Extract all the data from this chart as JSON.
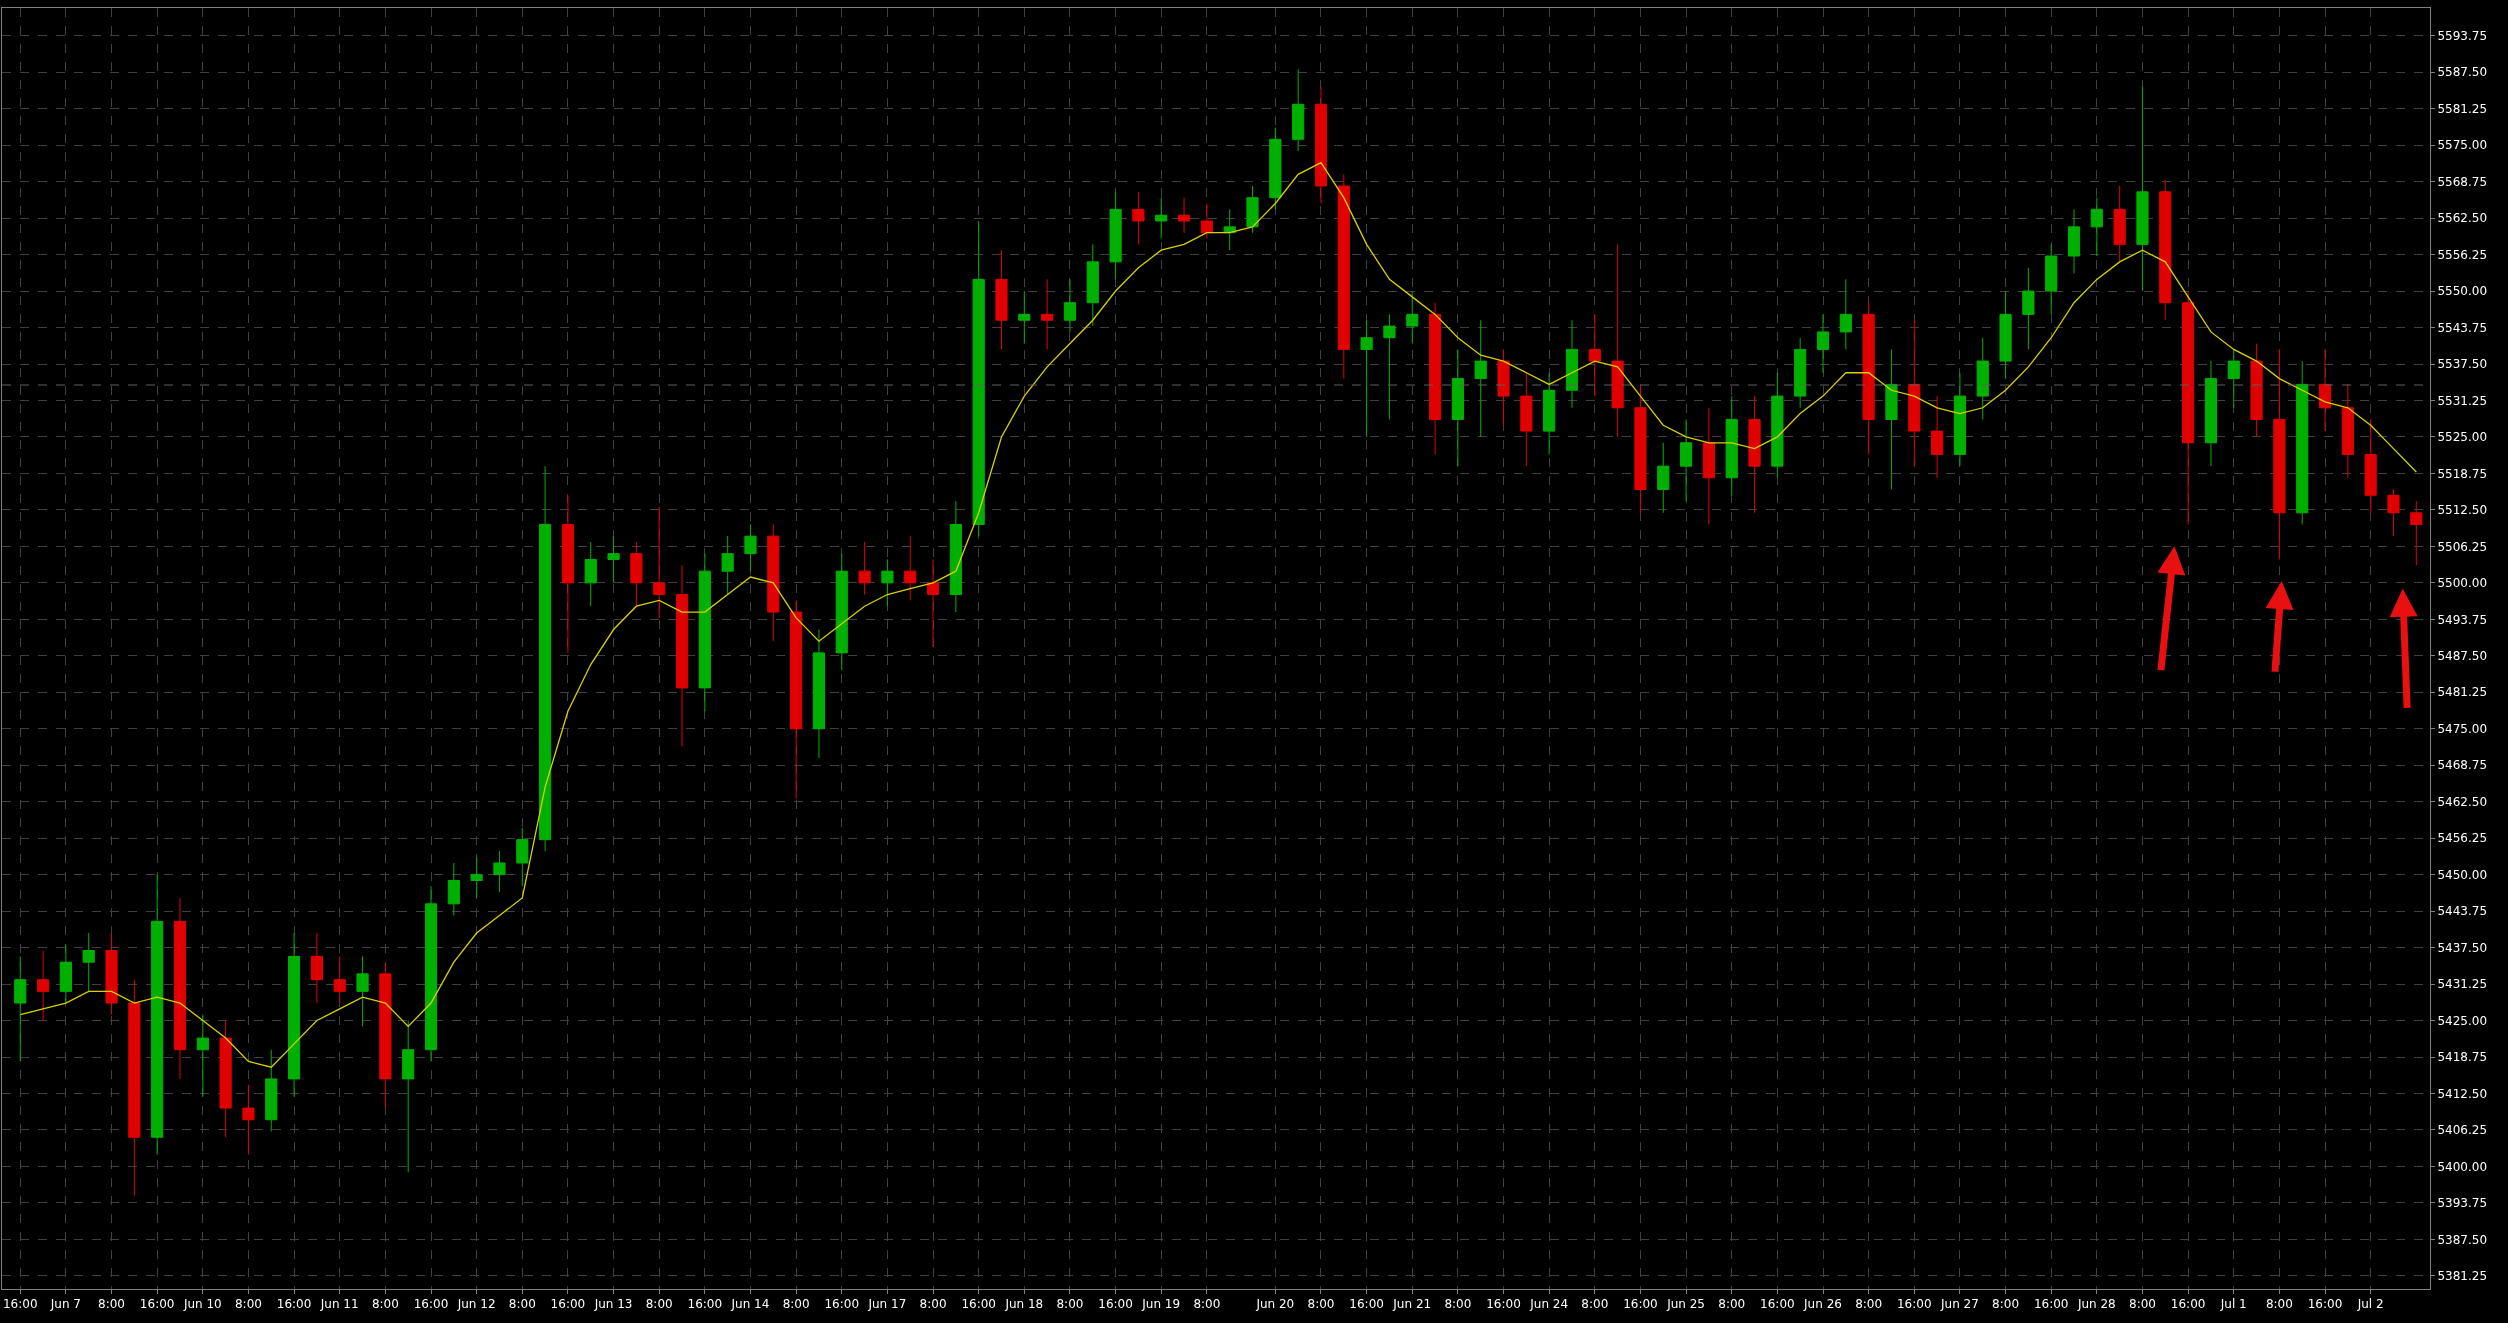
{
  "chart_data": {
    "type": "candlestick",
    "categories": [
      "16:00",
      null,
      "Jun 7",
      null,
      "8:00",
      null,
      "16:00",
      null,
      "Jun 10",
      null,
      "8:00",
      null,
      "16:00",
      null,
      "Jun 11",
      null,
      "8:00",
      null,
      "16:00",
      null,
      "Jun 12",
      null,
      "8:00",
      null,
      "16:00",
      null,
      "Jun 13",
      null,
      "8:00",
      null,
      "16:00",
      null,
      "Jun 14",
      null,
      "8:00",
      null,
      "16:00",
      null,
      "Jun 17",
      null,
      "8:00",
      null,
      "16:00",
      null,
      "Jun 18",
      null,
      "8:00",
      null,
      "16:00",
      null,
      "Jun 19",
      null,
      "8:00",
      null,
      null,
      "Jun 20",
      null,
      "8:00",
      null,
      "16:00",
      null,
      "Jun 21",
      null,
      "8:00",
      null,
      "16:00",
      null,
      "Jun 24",
      null,
      "8:00",
      null,
      "16:00",
      null,
      "Jun 25",
      null,
      "8:00",
      null,
      "16:00",
      null,
      "Jun 26",
      null,
      "8:00",
      null,
      "16:00",
      null,
      "Jun 27",
      null,
      "8:00",
      null,
      "16:00",
      null,
      "Jun 28",
      null,
      "8:00",
      null,
      "16:00",
      null,
      "Jul 1",
      null,
      "8:00",
      null,
      "16:00",
      null,
      "Jul 2",
      null,
      null
    ],
    "ohlc": [
      [
        5428,
        5436,
        5418,
        5432
      ],
      [
        5432,
        5437,
        5425,
        5430
      ],
      [
        5430,
        5438,
        5428,
        5435
      ],
      [
        5435,
        5440,
        5430,
        5437
      ],
      [
        5437,
        5440,
        5426,
        5428
      ],
      [
        5428,
        5432,
        5395,
        5405
      ],
      [
        5405,
        5450,
        5402,
        5442
      ],
      [
        5442,
        5446,
        5415,
        5420
      ],
      [
        5420,
        5426,
        5412,
        5422
      ],
      [
        5422,
        5425,
        5405,
        5410
      ],
      [
        5410,
        5414,
        5402,
        5408
      ],
      [
        5408,
        5420,
        5406,
        5415
      ],
      [
        5415,
        5440,
        5412,
        5436
      ],
      [
        5436,
        5440,
        5428,
        5432
      ],
      [
        5432,
        5436,
        5428,
        5430
      ],
      [
        5430,
        5436,
        5424,
        5433
      ],
      [
        5433,
        5435,
        5410,
        5415
      ],
      [
        5415,
        5425,
        5399,
        5420
      ],
      [
        5420,
        5448,
        5418,
        5445
      ],
      [
        5445,
        5452,
        5443,
        5449
      ],
      [
        5449,
        5453,
        5446,
        5450
      ],
      [
        5450,
        5454,
        5447,
        5452
      ],
      [
        5452,
        5458,
        5448,
        5456
      ],
      [
        5456,
        5520,
        5454,
        5510
      ],
      [
        5510,
        5515,
        5488,
        5500
      ],
      [
        5500,
        5507,
        5496,
        5504
      ],
      [
        5504,
        5508,
        5500,
        5505
      ],
      [
        5505,
        5507,
        5496,
        5500
      ],
      [
        5500,
        5513,
        5494,
        5498
      ],
      [
        5498,
        5503,
        5472,
        5482
      ],
      [
        5482,
        5505,
        5478,
        5502
      ],
      [
        5502,
        5508,
        5498,
        5505
      ],
      [
        5505,
        5510,
        5502,
        5508
      ],
      [
        5508,
        5510,
        5490,
        5495
      ],
      [
        5495,
        5497,
        5463,
        5475
      ],
      [
        5475,
        5492,
        5470,
        5488
      ],
      [
        5488,
        5505,
        5485,
        5502
      ],
      [
        5502,
        5507,
        5498,
        5500
      ],
      [
        5500,
        5504,
        5496,
        5502
      ],
      [
        5502,
        5508,
        5497,
        5500
      ],
      [
        5500,
        5504,
        5489,
        5498
      ],
      [
        5498,
        5514,
        5495,
        5510
      ],
      [
        5510,
        5562,
        5508,
        5552
      ],
      [
        5552,
        5557,
        5540,
        5545
      ],
      [
        5545,
        5550,
        5541,
        5546
      ],
      [
        5546,
        5552,
        5540,
        5545
      ],
      [
        5545,
        5552,
        5543,
        5548
      ],
      [
        5548,
        5558,
        5544,
        5555
      ],
      [
        5555,
        5567,
        5552,
        5564
      ],
      [
        5564,
        5567,
        5558,
        5562
      ],
      [
        5562,
        5566,
        5559,
        5563
      ],
      [
        5563,
        5566,
        5560,
        5562
      ],
      [
        5562,
        5565,
        5559,
        5560
      ],
      [
        5560,
        5564,
        5557,
        5561
      ],
      [
        5561,
        5568,
        5560,
        5566
      ],
      [
        5566,
        5578,
        5564,
        5576
      ],
      [
        5576,
        5588,
        5574,
        5582
      ],
      [
        5582,
        5585,
        5565,
        5568
      ],
      [
        5568,
        5570,
        5535,
        5540
      ],
      [
        5540,
        5545,
        5525,
        5542
      ],
      [
        5542,
        5546,
        5528,
        5544
      ],
      [
        5544,
        5550,
        5541,
        5546
      ],
      [
        5546,
        5548,
        5522,
        5528
      ],
      [
        5528,
        5540,
        5520,
        5535
      ],
      [
        5535,
        5545,
        5525,
        5538
      ],
      [
        5538,
        5540,
        5527,
        5532
      ],
      [
        5532,
        5536,
        5520,
        5526
      ],
      [
        5526,
        5536,
        5522,
        5533
      ],
      [
        5533,
        5545,
        5530,
        5540
      ],
      [
        5540,
        5546,
        5532,
        5538
      ],
      [
        5538,
        5558,
        5525,
        5530
      ],
      [
        5530,
        5534,
        5512,
        5516
      ],
      [
        5516,
        5524,
        5512,
        5520
      ],
      [
        5520,
        5528,
        5514,
        5524
      ],
      [
        5524,
        5530,
        5510,
        5518
      ],
      [
        5518,
        5532,
        5515,
        5528
      ],
      [
        5528,
        5532,
        5512,
        5520
      ],
      [
        5520,
        5536,
        5518,
        5532
      ],
      [
        5532,
        5542,
        5530,
        5540
      ],
      [
        5540,
        5546,
        5536,
        5543
      ],
      [
        5543,
        5552,
        5540,
        5546
      ],
      [
        5546,
        5548,
        5522,
        5528
      ],
      [
        5528,
        5540,
        5516,
        5534
      ],
      [
        5534,
        5545,
        5520,
        5526
      ],
      [
        5526,
        5532,
        5518,
        5522
      ],
      [
        5522,
        5536,
        5520,
        5532
      ],
      [
        5532,
        5542,
        5528,
        5538
      ],
      [
        5538,
        5550,
        5535,
        5546
      ],
      [
        5546,
        5554,
        5540,
        5550
      ],
      [
        5550,
        5558,
        5546,
        5556
      ],
      [
        5556,
        5564,
        5553,
        5561
      ],
      [
        5561,
        5566,
        5556,
        5564
      ],
      [
        5564,
        5568,
        5555,
        5558
      ],
      [
        5558,
        5585,
        5550,
        5567
      ],
      [
        5567,
        5569,
        5545,
        5548
      ],
      [
        5548,
        5550,
        5510,
        5524
      ],
      [
        5524,
        5538,
        5520,
        5535
      ],
      [
        5535,
        5540,
        5530,
        5538
      ],
      [
        5538,
        5541,
        5525,
        5528
      ],
      [
        5528,
        5540,
        5504,
        5512
      ],
      [
        5512,
        5538,
        5510,
        5534
      ],
      [
        5534,
        5540,
        5526,
        5530
      ],
      [
        5530,
        5534,
        5518,
        5522
      ],
      [
        5522,
        5528,
        5512,
        5515
      ],
      [
        5515,
        5516,
        5508,
        5512
      ],
      [
        5512,
        5514,
        5503,
        5510
      ]
    ],
    "colors": [
      "#00b000",
      "#e00000",
      "#00b000",
      "#00b000",
      "#e00000",
      "#e00000",
      "#00b000",
      "#e00000",
      "#00b000",
      "#e00000",
      "#e00000",
      "#00b000",
      "#00b000",
      "#e00000",
      "#e00000",
      "#00b000",
      "#e00000",
      "#00b000",
      "#00b000",
      "#00b000",
      "#00b000",
      "#00b000",
      "#00b000",
      "#00b000",
      "#e00000",
      "#00b000",
      "#00b000",
      "#e00000",
      "#e00000",
      "#e00000",
      "#00b000",
      "#00b000",
      "#00b000",
      "#e00000",
      "#e00000",
      "#00b000",
      "#00b000",
      "#e00000",
      "#00b000",
      "#e00000",
      "#e00000",
      "#00b000",
      "#00b000",
      "#e00000",
      "#00b000",
      "#e00000",
      "#00b000",
      "#00b000",
      "#00b000",
      "#e00000",
      "#00b000",
      "#e00000",
      "#e00000",
      "#00b000",
      "#00b000",
      "#00b000",
      "#00b000",
      "#e00000",
      "#e00000",
      "#00b000",
      "#00b000",
      "#00b000",
      "#e00000",
      "#00b000",
      "#00b000",
      "#e00000",
      "#e00000",
      "#00b000",
      "#00b000",
      "#e00000",
      "#e00000",
      "#e00000",
      "#00b000",
      "#00b000",
      "#e00000",
      "#00b000",
      "#e00000",
      "#00b000",
      "#00b000",
      "#00b000",
      "#00b000",
      "#e00000",
      "#00b000",
      "#e00000",
      "#e00000",
      "#00b000",
      "#00b000",
      "#00b000",
      "#00b000",
      "#00b000",
      "#00b000",
      "#00b000",
      "#e00000",
      "#00b000",
      "#e00000",
      "#e00000",
      "#00b000",
      "#00b000",
      "#e00000",
      "#e00000",
      "#00b000",
      "#e00000",
      "#e00000",
      "#e00000",
      "#e00000",
      "#e00000"
    ],
    "series": [
      {
        "type": "line",
        "color": "#d8d000",
        "values": [
          5426,
          5427,
          5428,
          5430,
          5430,
          5428,
          5429,
          5428,
          5425,
          5422,
          5418,
          5417,
          5421,
          5425,
          5427,
          5429,
          5428,
          5424,
          5428,
          5435,
          5440,
          5443,
          5446,
          5465,
          5478,
          5486,
          5492,
          5496,
          5497,
          5495,
          5495,
          5498,
          5501,
          5500,
          5494,
          5490,
          5493,
          5496,
          5498,
          5499,
          5500,
          5502,
          5512,
          5525,
          5532,
          5537,
          5541,
          5545,
          5550,
          5554,
          5557,
          5558,
          5560,
          5560,
          5561,
          5565,
          5570,
          5572,
          5566,
          5558,
          5552,
          5549,
          5546,
          5542,
          5539,
          5538,
          5536,
          5534,
          5536,
          5538,
          5537,
          5532,
          5527,
          5525,
          5524,
          5524,
          5523,
          5525,
          5529,
          5532,
          5536,
          5536,
          5533,
          5532,
          5530,
          5529,
          5530,
          5533,
          5537,
          5542,
          5548,
          5552,
          5555,
          5557,
          5555,
          5549,
          5543,
          5540,
          5538,
          5535,
          5533,
          5531,
          5530,
          5527,
          5523,
          5519
        ]
      }
    ],
    "ylim": [
      5379,
      5598.5
    ],
    "yticks": [
      {
        "value": 5381.25,
        "label": "5381.25"
      },
      {
        "value": 5387.5,
        "label": "5387.50"
      },
      {
        "value": 5393.75,
        "label": "5393.75"
      },
      {
        "value": 5400,
        "label": "5400.00"
      },
      {
        "value": 5406.25,
        "label": "5406.25"
      },
      {
        "value": 5412.5,
        "label": "5412.50"
      },
      {
        "value": 5418.75,
        "label": "5418.75"
      },
      {
        "value": 5425,
        "label": "5425.00"
      },
      {
        "value": 5431.25,
        "label": "5431.25"
      },
      {
        "value": 5437.5,
        "label": "5437.50"
      },
      {
        "value": 5443.75,
        "label": "5443.75"
      },
      {
        "value": 5450,
        "label": "5450.00"
      },
      {
        "value": 5456.25,
        "label": "5456.25"
      },
      {
        "value": 5462.5,
        "label": "5462.50"
      },
      {
        "value": 5468.75,
        "label": "5468.75"
      },
      {
        "value": 5475,
        "label": "5475.00"
      },
      {
        "value": 5481.25,
        "label": "5481.25"
      },
      {
        "value": 5487.5,
        "label": "5487.50"
      },
      {
        "value": 5493.75,
        "label": "5493.75"
      },
      {
        "value": 5500,
        "label": "5500.00"
      },
      {
        "value": 5506.25,
        "label": "5506.25"
      },
      {
        "value": 5512.5,
        "label": "5512.50"
      },
      {
        "value": 5518.75,
        "label": "5518.75"
      },
      {
        "value": 5525,
        "label": "5525.00"
      },
      {
        "value": 5531.25,
        "label": "5531.25"
      },
      {
        "value": 5537.5,
        "label": "5537.50"
      },
      {
        "value": 5543.75,
        "label": "5543.75"
      },
      {
        "value": 5550,
        "label": "5550.00"
      },
      {
        "value": 5556.25,
        "label": "5556.25"
      },
      {
        "value": 5562.5,
        "label": "5562.50"
      },
      {
        "value": 5568.75,
        "label": "5568.75"
      },
      {
        "value": 5575,
        "label": "5575.00"
      },
      {
        "value": 5581.25,
        "label": "5581.25"
      },
      {
        "value": 5587.5,
        "label": "5587.50"
      },
      {
        "value": 5593.75,
        "label": "5593.75"
      }
    ],
    "ref_lines": [
      {
        "axis": "y",
        "value": 5533.9,
        "color": "#606060",
        "line_style": "dashed"
      }
    ],
    "grid": true
  }
}
